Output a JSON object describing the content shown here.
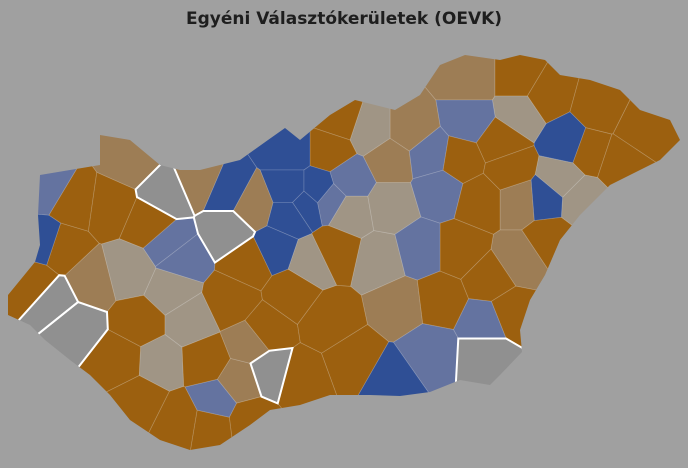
{
  "title": "Egyéni Választókerületek (OEVK)",
  "background": "#a0a0a0",
  "palette": {
    "orange": "#9c600f",
    "brown": "#9d7d55",
    "taupe": "#a09585",
    "blue": "#2f4f95",
    "lightblue": "#6473a0",
    "gray": "#909090"
  },
  "highlight_outline": "#ffffff",
  "districts": [
    "brown",
    "orange",
    "orange",
    "orange",
    "orange",
    "blue",
    "orange",
    "orange",
    "taupe",
    "lightblue",
    "orange",
    "orange",
    "lightblue",
    "lightblue",
    "brown",
    "brown",
    "taupe",
    "orange",
    "orange",
    "taupe",
    "blue",
    "brown",
    "orange",
    "orange",
    "orange",
    "taupe",
    "brown",
    "orange",
    "orange",
    "lightblue",
    "gray",
    "orange",
    "orange",
    "lightblue",
    "taupe",
    "brown",
    "lightblue",
    "blue",
    "orange",
    "orange",
    "orange",
    "taupe",
    "taupe",
    "taupe",
    "lightblue",
    "lightblue",
    "blue",
    "blue",
    "blue",
    "blue",
    "blue",
    "blue",
    "orange",
    "gray",
    "orange",
    "brown",
    "orange",
    "orange",
    "orange",
    "lightblue",
    "orange",
    "orange",
    "gray",
    "gray",
    "brown",
    "orange",
    "blue",
    "orange",
    "orange",
    "lightblue",
    "orange",
    "brown",
    "lightblue",
    "gray",
    "orange",
    "brown",
    "blue",
    "gray",
    "brown",
    "orange",
    "orange",
    "lightblue",
    "taupe",
    "taupe",
    "orange",
    "taupe",
    "orange",
    "orange",
    "brown",
    "taupe"
  ]
}
